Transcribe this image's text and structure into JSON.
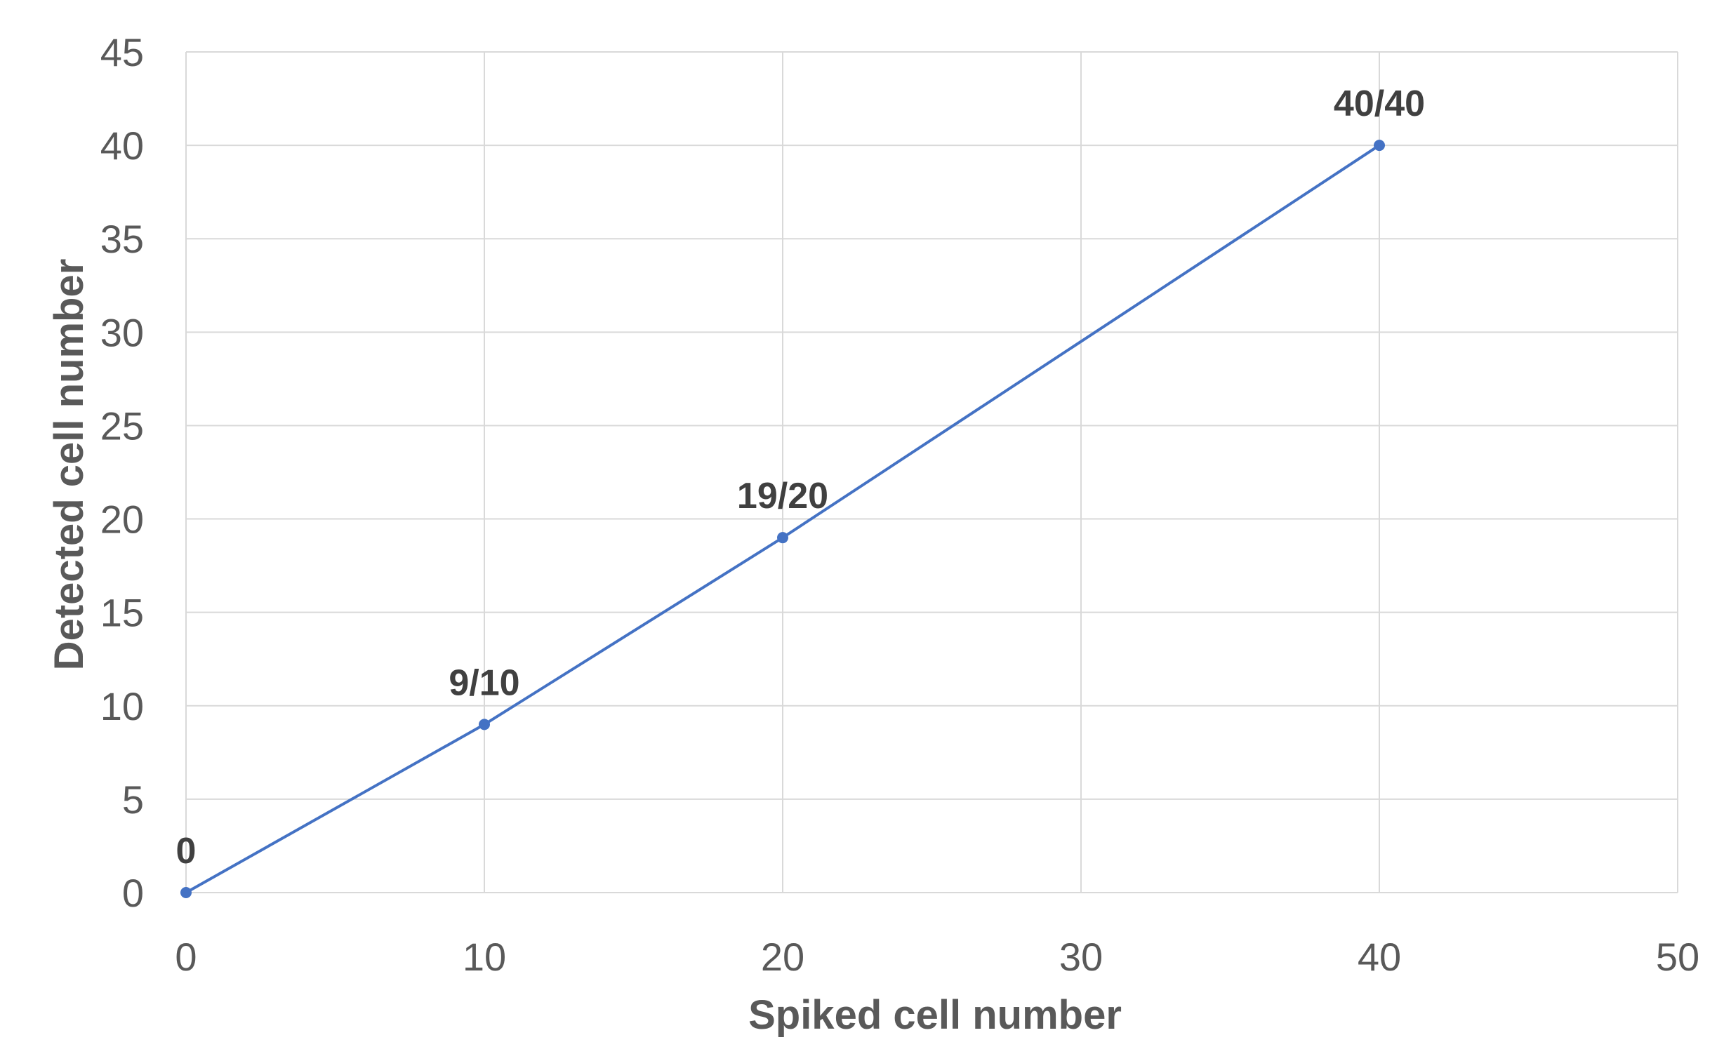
{
  "chart_data": {
    "type": "line",
    "title": "",
    "xlabel": "Spiked cell number",
    "ylabel": "Detected cell number",
    "xlim": [
      0,
      50
    ],
    "ylim": [
      0,
      45
    ],
    "x_ticks": [
      0,
      10,
      20,
      30,
      40,
      50
    ],
    "y_ticks": [
      0,
      5,
      10,
      15,
      20,
      25,
      30,
      35,
      40,
      45
    ],
    "grid": true,
    "legend": "none",
    "series": [
      {
        "color": "#4472c4",
        "points": [
          {
            "x": 0,
            "y": 0,
            "label": "0"
          },
          {
            "x": 10,
            "y": 9,
            "label": "9/10"
          },
          {
            "x": 20,
            "y": 19,
            "label": "19/20"
          },
          {
            "x": 40,
            "y": 40,
            "label": "40/40"
          }
        ]
      }
    ]
  }
}
